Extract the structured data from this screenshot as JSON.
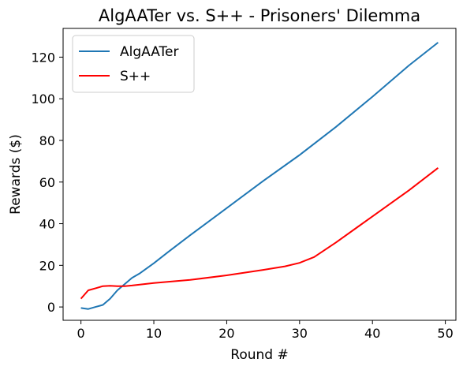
{
  "chart_data": {
    "type": "line",
    "title": "AlgAATer vs. S++ - Prisoners' Dilemma",
    "xlabel": "Round #",
    "ylabel": "Rewards ($)",
    "xlim": [
      -2.45,
      51.45
    ],
    "ylim": [
      -6.4,
      133.8
    ],
    "xticks": [
      0,
      10,
      20,
      30,
      40,
      50
    ],
    "yticks": [
      0,
      20,
      40,
      60,
      80,
      100,
      120
    ],
    "grid": false,
    "legend_position": "top-left",
    "series": [
      {
        "name": "AlgAATer",
        "color": "#1f77b4",
        "x": [
          0,
          1,
          2,
          3,
          4,
          5,
          6,
          7,
          8,
          10,
          12,
          15,
          20,
          25,
          30,
          35,
          40,
          45,
          49
        ],
        "y": [
          -0.5,
          -1,
          0,
          1,
          4,
          8,
          11,
          14,
          16,
          21,
          26.5,
          34.5,
          47.5,
          60.5,
          73,
          86.5,
          101,
          116,
          127
        ]
      },
      {
        "name": "S++",
        "color": "#ff0000",
        "x": [
          0,
          1,
          2,
          3,
          4,
          5,
          6,
          7,
          10,
          15,
          20,
          25,
          28,
          30,
          32,
          35,
          38,
          40,
          45,
          49
        ],
        "y": [
          4,
          8,
          9,
          10,
          10.2,
          10,
          10,
          10.3,
          11.5,
          13,
          15.2,
          17.8,
          19.5,
          21.2,
          24,
          31,
          38.5,
          43.5,
          56,
          66.8
        ]
      }
    ]
  }
}
